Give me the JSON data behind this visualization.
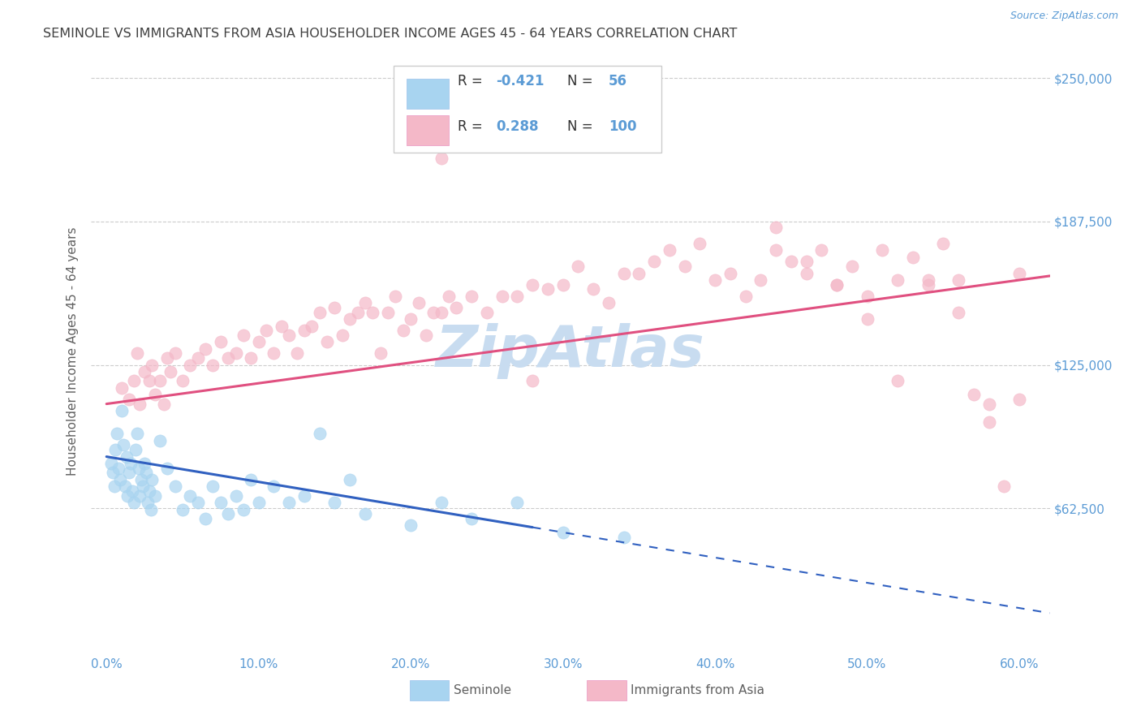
{
  "title": "SEMINOLE VS IMMIGRANTS FROM ASIA HOUSEHOLDER INCOME AGES 45 - 64 YEARS CORRELATION CHART",
  "source": "Source: ZipAtlas.com",
  "xlabel_ticks": [
    "0.0%",
    "10.0%",
    "20.0%",
    "30.0%",
    "40.0%",
    "50.0%",
    "60.0%"
  ],
  "xlabel_vals": [
    0.0,
    10.0,
    20.0,
    30.0,
    40.0,
    50.0,
    60.0
  ],
  "ylabel_ticks": [
    "$62,500",
    "$125,000",
    "$187,500",
    "$250,000"
  ],
  "ylabel_vals": [
    62500,
    125000,
    187500,
    250000
  ],
  "xlim": [
    -1.0,
    62.0
  ],
  "ylim": [
    0,
    262000
  ],
  "legend_blue_r": "-0.421",
  "legend_blue_n": "56",
  "legend_pink_r": "0.288",
  "legend_pink_n": "100",
  "blue_scatter_color": "#A8D4F0",
  "pink_scatter_color": "#F4B8C8",
  "blue_line_color": "#3060C0",
  "pink_line_color": "#E05080",
  "title_color": "#404040",
  "axis_label_color": "#5B9BD5",
  "tick_color": "#5B9BD5",
  "watermark_color": "#C8DCF0",
  "background_color": "#FFFFFF",
  "grid_color": "#CCCCCC",
  "blue_trend_intercept": 85000,
  "blue_trend_slope": -1100,
  "pink_trend_intercept": 108000,
  "pink_trend_slope": 900,
  "blue_solid_end": 28.0,
  "seminole_x": [
    0.3,
    0.4,
    0.5,
    0.6,
    0.7,
    0.8,
    0.9,
    1.0,
    1.1,
    1.2,
    1.3,
    1.4,
    1.5,
    1.6,
    1.7,
    1.8,
    1.9,
    2.0,
    2.1,
    2.2,
    2.3,
    2.4,
    2.5,
    2.6,
    2.7,
    2.8,
    2.9,
    3.0,
    3.2,
    3.5,
    4.0,
    4.5,
    5.0,
    5.5,
    6.0,
    6.5,
    7.0,
    7.5,
    8.0,
    8.5,
    9.0,
    9.5,
    10.0,
    11.0,
    12.0,
    13.0,
    14.0,
    15.0,
    16.0,
    17.0,
    20.0,
    22.0,
    24.0,
    27.0,
    30.0,
    34.0
  ],
  "seminole_y": [
    82000,
    78000,
    72000,
    88000,
    95000,
    80000,
    75000,
    105000,
    90000,
    72000,
    85000,
    68000,
    78000,
    82000,
    70000,
    65000,
    88000,
    95000,
    80000,
    68000,
    75000,
    72000,
    82000,
    78000,
    65000,
    70000,
    62000,
    75000,
    68000,
    92000,
    80000,
    72000,
    62000,
    68000,
    65000,
    58000,
    72000,
    65000,
    60000,
    68000,
    62000,
    75000,
    65000,
    72000,
    65000,
    68000,
    95000,
    65000,
    75000,
    60000,
    55000,
    65000,
    58000,
    65000,
    52000,
    50000
  ],
  "asia_x": [
    1.0,
    1.5,
    1.8,
    2.0,
    2.2,
    2.5,
    2.8,
    3.0,
    3.2,
    3.5,
    3.8,
    4.0,
    4.2,
    4.5,
    5.0,
    5.5,
    6.0,
    6.5,
    7.0,
    7.5,
    8.0,
    8.5,
    9.0,
    9.5,
    10.0,
    10.5,
    11.0,
    11.5,
    12.0,
    12.5,
    13.0,
    13.5,
    14.0,
    14.5,
    15.0,
    15.5,
    16.0,
    16.5,
    17.0,
    17.5,
    18.0,
    18.5,
    19.0,
    19.5,
    20.0,
    20.5,
    21.0,
    21.5,
    22.0,
    22.5,
    23.0,
    24.0,
    25.0,
    26.0,
    27.0,
    28.0,
    29.0,
    30.0,
    31.0,
    32.0,
    33.0,
    34.0,
    35.0,
    36.0,
    37.0,
    38.0,
    39.0,
    40.0,
    41.0,
    42.0,
    43.0,
    44.0,
    45.0,
    46.0,
    47.0,
    48.0,
    49.0,
    50.0,
    51.0,
    52.0,
    53.0,
    54.0,
    55.0,
    56.0,
    57.0,
    58.0,
    59.0,
    60.0,
    44.0,
    46.0,
    48.0,
    50.0,
    52.0,
    54.0,
    56.0,
    58.0,
    60.0,
    22.0,
    25.0,
    28.0
  ],
  "asia_y": [
    115000,
    110000,
    118000,
    130000,
    108000,
    122000,
    118000,
    125000,
    112000,
    118000,
    108000,
    128000,
    122000,
    130000,
    118000,
    125000,
    128000,
    132000,
    125000,
    135000,
    128000,
    130000,
    138000,
    128000,
    135000,
    140000,
    130000,
    142000,
    138000,
    130000,
    140000,
    142000,
    148000,
    135000,
    150000,
    138000,
    145000,
    148000,
    152000,
    148000,
    130000,
    148000,
    155000,
    140000,
    145000,
    152000,
    138000,
    148000,
    148000,
    155000,
    150000,
    155000,
    148000,
    155000,
    155000,
    160000,
    158000,
    160000,
    168000,
    158000,
    152000,
    165000,
    165000,
    170000,
    175000,
    168000,
    178000,
    162000,
    165000,
    155000,
    162000,
    175000,
    170000,
    165000,
    175000,
    160000,
    168000,
    155000,
    175000,
    162000,
    172000,
    162000,
    178000,
    162000,
    112000,
    100000,
    72000,
    110000,
    185000,
    170000,
    160000,
    145000,
    118000,
    160000,
    148000,
    108000,
    165000,
    215000,
    225000,
    118000
  ]
}
